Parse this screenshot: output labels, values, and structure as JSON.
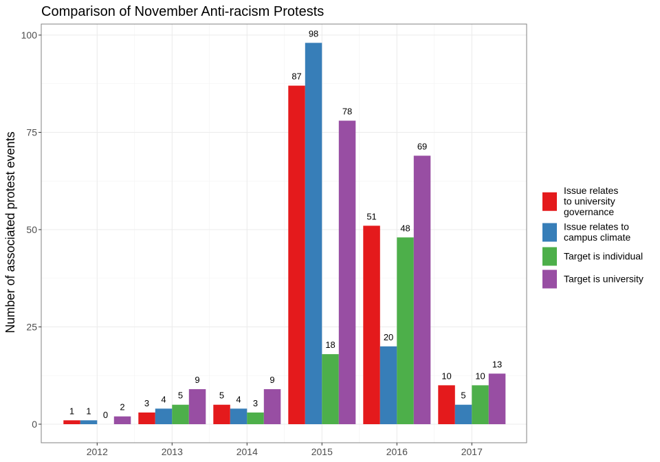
{
  "chart_data": {
    "type": "bar",
    "title": "Comparison of November Anti-racism Protests",
    "xlabel": "",
    "ylabel": "Number of associated protest events",
    "categories": [
      "2012",
      "2013",
      "2014",
      "2015",
      "2016",
      "2017"
    ],
    "ylim": [
      0,
      105
    ],
    "yticks": [
      0,
      25,
      50,
      75,
      100
    ],
    "grid": true,
    "legend_position": "right",
    "series": [
      {
        "name": "Issue relates to university governance",
        "legend_lines": [
          "Issue relates",
          "to university",
          "governance"
        ],
        "color": "#e41a1c",
        "values": [
          1,
          3,
          5,
          87,
          51,
          10
        ]
      },
      {
        "name": "Issue relates to campus climate",
        "legend_lines": [
          "Issue relates to",
          "campus climate"
        ],
        "color": "#377eb8",
        "values": [
          1,
          4,
          4,
          98,
          20,
          5
        ]
      },
      {
        "name": "Target is individual",
        "legend_lines": [
          "Target is individual"
        ],
        "color": "#4daf4a",
        "values": [
          0,
          5,
          3,
          18,
          48,
          10
        ]
      },
      {
        "name": "Target is university",
        "legend_lines": [
          "Target is university"
        ],
        "color": "#984ea3",
        "values": [
          2,
          9,
          9,
          78,
          69,
          13
        ]
      }
    ]
  }
}
